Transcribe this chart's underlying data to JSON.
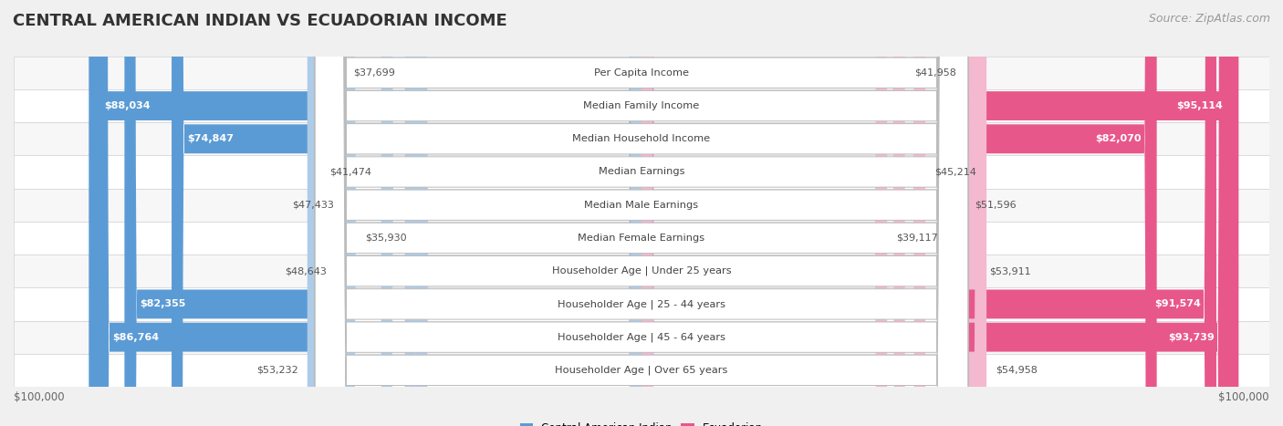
{
  "title": "CENTRAL AMERICAN INDIAN VS ECUADORIAN INCOME",
  "source": "Source: ZipAtlas.com",
  "categories": [
    "Per Capita Income",
    "Median Family Income",
    "Median Household Income",
    "Median Earnings",
    "Median Male Earnings",
    "Median Female Earnings",
    "Householder Age | Under 25 years",
    "Householder Age | 25 - 44 years",
    "Householder Age | 45 - 64 years",
    "Householder Age | Over 65 years"
  ],
  "left_values": [
    37699,
    88034,
    74847,
    41474,
    47433,
    35930,
    48643,
    82355,
    86764,
    53232
  ],
  "right_values": [
    41958,
    95114,
    82070,
    45214,
    51596,
    39117,
    53911,
    91574,
    93739,
    54958
  ],
  "left_labels": [
    "$37,699",
    "$88,034",
    "$74,847",
    "$41,474",
    "$47,433",
    "$35,930",
    "$48,643",
    "$82,355",
    "$86,764",
    "$53,232"
  ],
  "right_labels": [
    "$41,958",
    "$95,114",
    "$82,070",
    "$45,214",
    "$51,596",
    "$39,117",
    "$53,911",
    "$91,574",
    "$93,739",
    "$54,958"
  ],
  "left_dark": [
    false,
    true,
    true,
    false,
    false,
    false,
    false,
    true,
    true,
    false
  ],
  "right_dark": [
    false,
    true,
    true,
    false,
    false,
    false,
    false,
    true,
    true,
    false
  ],
  "max_value": 100000,
  "left_color_dark": "#5b9bd5",
  "left_color_light": "#aecce8",
  "right_color_dark": "#e8578a",
  "right_color_light": "#f4b8cf",
  "bg_color": "#f0f0f0",
  "row_bg_even": "#f7f7f7",
  "row_bg_odd": "#ffffff",
  "legend_left": "Central American Indian",
  "legend_right": "Ecuadorian",
  "title_fontsize": 13,
  "source_fontsize": 9,
  "bar_label_fontsize": 8.0,
  "cat_fontsize": 8.2,
  "axis_label_fontsize": 8.5
}
